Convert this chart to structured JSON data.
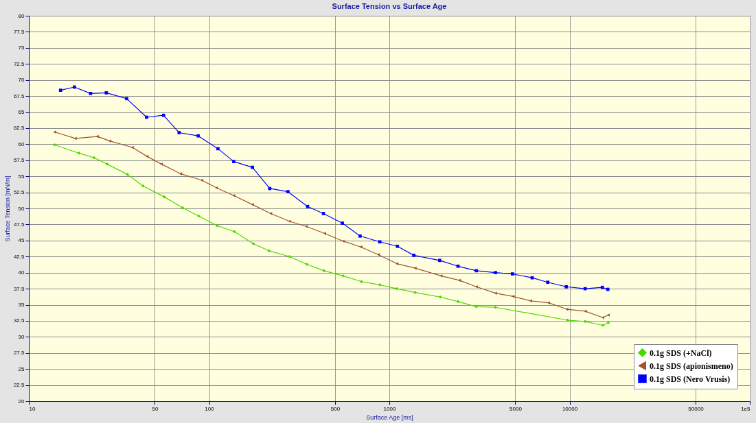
{
  "chart_data": {
    "type": "line",
    "title": "Surface Tension vs Surface Age",
    "xlabel": "Surface Age [ms]",
    "ylabel": "Surface Tension [mN/m]",
    "log": "x",
    "xlim": [
      10,
      100000
    ],
    "xticks": [
      10,
      50,
      100,
      500,
      1000,
      5000,
      10000,
      50000,
      {
        "value": 100000,
        "label": "1e5"
      }
    ],
    "ylim": [
      20,
      80
    ],
    "yticks": [
      20,
      22.5,
      25,
      27.5,
      30,
      32.5,
      35,
      37.5,
      40,
      42.5,
      45,
      47.5,
      50,
      52.5,
      55,
      57.5,
      60,
      62.5,
      65,
      67.5,
      70,
      72.5,
      75,
      77.5,
      80
    ],
    "grid": true,
    "legend": "bottom right",
    "series": [
      {
        "name": "0.1g SDS (+NaCl)",
        "color": "#4cd600",
        "marker": "diamond",
        "x": [
          13.9,
          19.0,
          23.0,
          27.2,
          35.2,
          43.0,
          56.4,
          71.3,
          87.8,
          111,
          138,
          176,
          215,
          279,
          349,
          434,
          554,
          700,
          885,
          1101,
          1391,
          1918,
          2405,
          3040,
          3880,
          9750,
          12200,
          15300,
          16400
        ],
        "values": [
          59.9,
          58.6,
          57.9,
          56.9,
          55.3,
          53.5,
          51.8,
          50.1,
          48.8,
          47.3,
          46.4,
          44.5,
          43.4,
          42.5,
          41.3,
          40.3,
          39.5,
          38.6,
          38.1,
          37.5,
          36.9,
          36.2,
          35.5,
          34.7,
          34.6,
          32.6,
          32.4,
          31.8,
          32.2
        ]
      },
      {
        "name": "0.1g SDS (apionismeno)",
        "color": "#a0522d",
        "marker": "triangle",
        "x": [
          13.9,
          18.1,
          24.0,
          28.1,
          37.5,
          45.3,
          54.4,
          69.4,
          90.9,
          110,
          137,
          174,
          220,
          279,
          346,
          438,
          554,
          695,
          870,
          1101,
          1391,
          1935,
          2448,
          3040,
          3880,
          4860,
          6090,
          7640,
          9660,
          12200,
          15300,
          16400
        ],
        "values": [
          61.9,
          60.9,
          61.2,
          60.5,
          59.5,
          58.1,
          56.9,
          55.4,
          54.4,
          53.2,
          52.0,
          50.6,
          49.2,
          48.0,
          47.2,
          46.1,
          44.9,
          44.0,
          42.8,
          41.4,
          40.7,
          39.5,
          38.8,
          37.8,
          36.8,
          36.3,
          35.6,
          35.3,
          34.3,
          34.0,
          33.0,
          33.4
        ]
      },
      {
        "name": "0.1g SDS (Nero Vrusis)",
        "color": "#0000ff",
        "marker": "square",
        "x": [
          15.0,
          17.9,
          22.0,
          26.9,
          34.9,
          45.0,
          55.9,
          68.2,
          87.0,
          112,
          137,
          174,
          217,
          274,
          352,
          431,
          549,
          688,
          885,
          1109,
          1367,
          1902,
          2405,
          3040,
          3880,
          4820,
          6200,
          7570,
          9580,
          12200,
          15200,
          16300
        ],
        "values": [
          68.4,
          68.9,
          67.9,
          68.0,
          67.1,
          64.2,
          64.5,
          61.8,
          61.3,
          59.3,
          57.3,
          56.4,
          53.1,
          52.6,
          50.3,
          49.2,
          47.7,
          45.7,
          44.8,
          44.1,
          42.7,
          41.9,
          41.0,
          40.3,
          40.0,
          39.8,
          39.2,
          38.5,
          37.8,
          37.5,
          37.7,
          37.4
        ]
      }
    ]
  }
}
